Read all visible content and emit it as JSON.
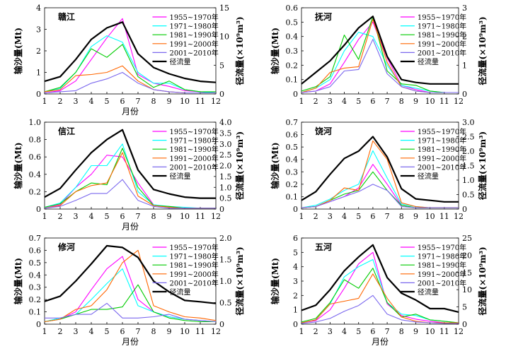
{
  "chart_data": [
    {
      "type": "line",
      "title": "赣江",
      "xlabel": "月份",
      "ylabel": "输沙量(Mt)",
      "y2label": "径流量(×10⁹m³)",
      "x": [
        1,
        2,
        3,
        4,
        5,
        6,
        7,
        8,
        9,
        10,
        11,
        12
      ],
      "ylim": [
        0,
        4
      ],
      "yticks": [
        "0",
        "1",
        "2",
        "3",
        "4"
      ],
      "y2lim": [
        0,
        15
      ],
      "y2ticks": [
        "0",
        "5",
        "10",
        "15"
      ],
      "legend_position": "top-right",
      "series": [
        {
          "name": "1955~1970年",
          "color": "#ff00ff",
          "axis": "left",
          "values": [
            0.05,
            0.15,
            0.6,
            1.6,
            2.6,
            3.5,
            0.9,
            0.5,
            0.35,
            0.15,
            0.1,
            0.05
          ]
        },
        {
          "name": "1971~1980年",
          "color": "#00ffff",
          "axis": "left",
          "values": [
            0.1,
            0.25,
            1.0,
            2.2,
            2.7,
            2.4,
            1.0,
            0.5,
            0.5,
            0.2,
            0.1,
            0.05
          ]
        },
        {
          "name": "1981~1990年",
          "color": "#00cc00",
          "axis": "left",
          "values": [
            0.1,
            0.3,
            1.0,
            2.1,
            1.7,
            2.3,
            0.8,
            0.3,
            0.6,
            0.2,
            0.1,
            0.1
          ]
        },
        {
          "name": "1991~2000年",
          "color": "#ff6600",
          "axis": "left",
          "values": [
            0.1,
            0.2,
            0.85,
            0.9,
            1.0,
            1.3,
            0.6,
            0.2,
            0.1,
            0.05,
            0.05,
            0.05
          ]
        },
        {
          "name": "2001~2010年",
          "color": "#7b68ee",
          "axis": "left",
          "values": [
            0.05,
            0.1,
            0.15,
            0.5,
            0.7,
            1.0,
            0.5,
            0.2,
            0.1,
            0.05,
            0.05,
            0.05
          ]
        },
        {
          "name": "径流量",
          "color": "#000000",
          "axis": "right",
          "values": [
            2.2,
            3.0,
            6.0,
            9.5,
            11.5,
            12.5,
            7.0,
            4.6,
            3.5,
            2.7,
            2.2,
            2.0
          ]
        }
      ]
    },
    {
      "type": "line",
      "title": "抚河",
      "xlabel": "",
      "ylabel": "输沙量(Mt)",
      "y2label": "径流量(×10⁹m³)",
      "x": [
        1,
        2,
        3,
        4,
        5,
        6,
        7,
        8,
        9,
        10,
        11,
        12
      ],
      "ylim": [
        0,
        0.6
      ],
      "yticks": [
        "0",
        "0.1",
        "0.2",
        "0.3",
        "0.4",
        "0.5",
        "0.6"
      ],
      "y2lim": [
        0,
        3
      ],
      "y2ticks": [
        "0",
        "1",
        "2",
        "3"
      ],
      "legend_position": "top-right",
      "series": [
        {
          "name": "1955~1970年",
          "color": "#ff00ff",
          "axis": "left",
          "values": [
            0.01,
            0.02,
            0.07,
            0.22,
            0.38,
            0.5,
            0.25,
            0.06,
            0.03,
            0.01,
            0.01,
            0.01
          ]
        },
        {
          "name": "1971~1980年",
          "color": "#00ffff",
          "axis": "left",
          "values": [
            0.01,
            0.04,
            0.1,
            0.3,
            0.43,
            0.4,
            0.2,
            0.06,
            0.04,
            0.02,
            0.01,
            0.01
          ]
        },
        {
          "name": "1981~1990年",
          "color": "#00cc00",
          "axis": "left",
          "values": [
            0.02,
            0.05,
            0.12,
            0.41,
            0.24,
            0.54,
            0.16,
            0.07,
            0.06,
            0.02,
            0.01,
            0.01
          ]
        },
        {
          "name": "1991~2000年",
          "color": "#ff6600",
          "axis": "left",
          "values": [
            0.01,
            0.04,
            0.15,
            0.18,
            0.19,
            0.52,
            0.22,
            0.05,
            0.02,
            0.01,
            0.01,
            0.01
          ]
        },
        {
          "name": "2001~2010年",
          "color": "#7b68ee",
          "axis": "left",
          "values": [
            0.01,
            0.02,
            0.05,
            0.16,
            0.17,
            0.38,
            0.14,
            0.05,
            0.02,
            0.01,
            0.01,
            0.01
          ]
        },
        {
          "name": "径流量",
          "color": "#000000",
          "axis": "right",
          "values": [
            0.35,
            0.75,
            1.15,
            1.7,
            2.3,
            2.7,
            1.3,
            0.5,
            0.4,
            0.35,
            0.35,
            0.35
          ]
        }
      ]
    },
    {
      "type": "line",
      "title": "信江",
      "xlabel": "月份",
      "ylabel": "输沙量(Mt)",
      "y2label": "径流量(×10⁹m³)",
      "x": [
        1,
        2,
        3,
        4,
        5,
        6,
        7,
        8,
        9,
        10,
        11,
        12
      ],
      "ylim": [
        0,
        1.0
      ],
      "yticks": [
        "0",
        "0.2",
        "0.4",
        "0.6",
        "0.8",
        "1.0"
      ],
      "y2lim": [
        0,
        4
      ],
      "y2ticks": [
        "0",
        "0.5",
        "1.0",
        "1.5",
        "2.0",
        "2.5",
        "3.0",
        "3.5",
        "4.0"
      ],
      "legend_position": "top-right",
      "series": [
        {
          "name": "1955~1970年",
          "color": "#ff00ff",
          "axis": "left",
          "values": [
            0.01,
            0.05,
            0.25,
            0.4,
            0.62,
            0.6,
            0.3,
            0.05,
            0.02,
            0.01,
            0.01,
            0.01
          ]
        },
        {
          "name": "1971~1980年",
          "color": "#00ffff",
          "axis": "left",
          "values": [
            0.02,
            0.07,
            0.25,
            0.5,
            0.5,
            0.75,
            0.2,
            0.05,
            0.03,
            0.02,
            0.01,
            0.01
          ]
        },
        {
          "name": "1981~1990年",
          "color": "#00cc00",
          "axis": "left",
          "values": [
            0.02,
            0.06,
            0.2,
            0.3,
            0.28,
            0.7,
            0.25,
            0.04,
            0.03,
            0.01,
            0.01,
            0.01
          ]
        },
        {
          "name": "1991~2000年",
          "color": "#ff6600",
          "axis": "left",
          "values": [
            0.01,
            0.04,
            0.2,
            0.27,
            0.3,
            0.65,
            0.15,
            0.04,
            0.02,
            0.01,
            0.01,
            0.01
          ]
        },
        {
          "name": "2001~2010年",
          "color": "#7b68ee",
          "axis": "left",
          "values": [
            0.01,
            0.03,
            0.1,
            0.18,
            0.18,
            0.34,
            0.1,
            0.03,
            0.01,
            0.01,
            0.01,
            0.01
          ]
        },
        {
          "name": "径流量",
          "color": "#000000",
          "axis": "right",
          "values": [
            0.55,
            0.95,
            1.8,
            2.6,
            3.2,
            3.65,
            1.8,
            0.9,
            0.7,
            0.55,
            0.5,
            0.5
          ]
        }
      ]
    },
    {
      "type": "line",
      "title": "饶河",
      "xlabel": "",
      "ylabel": "输沙量(Mt)",
      "y2label": "径流量(×10⁹m³)",
      "x": [
        1,
        2,
        3,
        4,
        5,
        6,
        7,
        8,
        9,
        10,
        11,
        12
      ],
      "ylim": [
        0,
        0.7
      ],
      "yticks": [
        "0",
        "0.1",
        "0.2",
        "0.3",
        "0.4",
        "0.5",
        "0.6",
        "0.7"
      ],
      "y2lim": [
        0,
        3
      ],
      "y2ticks": [
        "0",
        "0.5",
        "1.0",
        "1.5",
        "2.0",
        "2.5",
        "3.0"
      ],
      "legend_position": "top-right",
      "series": [
        {
          "name": "1955~1970年",
          "color": "#ff00ff",
          "axis": "left",
          "values": [
            0.01,
            0.02,
            0.06,
            0.1,
            0.17,
            0.36,
            0.2,
            0.03,
            0.01,
            0.01,
            0.01,
            0.01
          ]
        },
        {
          "name": "1971~1980年",
          "color": "#00ffff",
          "axis": "left",
          "values": [
            0.01,
            0.03,
            0.08,
            0.15,
            0.2,
            0.47,
            0.25,
            0.04,
            0.02,
            0.01,
            0.01,
            0.01
          ]
        },
        {
          "name": "1981~1990年",
          "color": "#00cc00",
          "axis": "left",
          "values": [
            0.01,
            0.02,
            0.07,
            0.12,
            0.15,
            0.3,
            0.15,
            0.03,
            0.01,
            0.01,
            0.01,
            0.01
          ]
        },
        {
          "name": "1991~2000年",
          "color": "#ff6600",
          "axis": "left",
          "values": [
            0.01,
            0.02,
            0.07,
            0.17,
            0.15,
            0.55,
            0.4,
            0.05,
            0.02,
            0.01,
            0.01,
            0.01
          ]
        },
        {
          "name": "2001~2010年",
          "color": "#7b68ee",
          "axis": "left",
          "values": [
            0.01,
            0.02,
            0.06,
            0.1,
            0.14,
            0.2,
            0.15,
            0.02,
            0.01,
            0.01,
            0.01,
            0.01
          ]
        },
        {
          "name": "径流量",
          "color": "#000000",
          "axis": "right",
          "values": [
            0.3,
            0.6,
            1.2,
            1.75,
            2.0,
            2.5,
            1.8,
            0.7,
            0.35,
            0.3,
            0.25,
            0.25
          ]
        }
      ]
    },
    {
      "type": "line",
      "title": "修河",
      "xlabel": "月份",
      "ylabel": "输沙量(Mt)",
      "y2label": "径流量(×10⁹m³)",
      "x": [
        1,
        2,
        3,
        4,
        5,
        6,
        7,
        8,
        9,
        10,
        11,
        12
      ],
      "ylim": [
        0,
        0.7
      ],
      "yticks": [
        "0",
        "0.1",
        "0.2",
        "0.3",
        "0.4",
        "0.5",
        "0.6",
        "0.7"
      ],
      "y2lim": [
        0,
        2.0
      ],
      "y2ticks": [
        "0",
        "0.5",
        "1.0",
        "1.5",
        "2.0"
      ],
      "legend_position": "top-right",
      "series": [
        {
          "name": "1955~1970年",
          "color": "#ff00ff",
          "axis": "left",
          "values": [
            0.02,
            0.04,
            0.1,
            0.28,
            0.45,
            0.55,
            0.2,
            0.1,
            0.06,
            0.04,
            0.03,
            0.02
          ]
        },
        {
          "name": "1971~1980年",
          "color": "#00ffff",
          "axis": "left",
          "values": [
            0.02,
            0.05,
            0.08,
            0.2,
            0.33,
            0.45,
            0.15,
            0.1,
            0.06,
            0.04,
            0.03,
            0.02
          ]
        },
        {
          "name": "1981~1990年",
          "color": "#00cc00",
          "axis": "left",
          "values": [
            0.02,
            0.04,
            0.08,
            0.12,
            0.12,
            0.14,
            0.32,
            0.1,
            0.05,
            0.03,
            0.02,
            0.02
          ]
        },
        {
          "name": "1991~2000年",
          "color": "#ff6600",
          "axis": "left",
          "values": [
            0.02,
            0.04,
            0.12,
            0.15,
            0.28,
            0.5,
            0.6,
            0.15,
            0.1,
            0.06,
            0.05,
            0.03
          ]
        },
        {
          "name": "2001~2010年",
          "color": "#7b68ee",
          "axis": "left",
          "values": [
            0.05,
            0.05,
            0.08,
            0.08,
            0.17,
            0.05,
            0.05,
            0.06,
            0.08,
            0.04,
            0.03,
            0.02
          ]
        },
        {
          "name": "径流量",
          "color": "#000000",
          "axis": "right",
          "values": [
            0.53,
            0.65,
            1.0,
            1.4,
            1.82,
            1.78,
            1.55,
            1.0,
            0.75,
            0.55,
            0.52,
            0.48
          ]
        }
      ]
    },
    {
      "type": "line",
      "title": "五河",
      "xlabel": "月份",
      "ylabel": "输沙量(Mt)",
      "y2label": "径流量(×10⁹m³)",
      "x": [
        1,
        2,
        3,
        4,
        5,
        6,
        7,
        8,
        9,
        10,
        11,
        12
      ],
      "ylim": [
        0,
        6
      ],
      "yticks": [
        "0",
        "1",
        "2",
        "3",
        "4",
        "5",
        "6"
      ],
      "y2lim": [
        0,
        25
      ],
      "y2ticks": [
        "0",
        "5",
        "10",
        "15",
        "20",
        "25"
      ],
      "legend_position": "top-right",
      "series": [
        {
          "name": "1955~1970年",
          "color": "#ff00ff",
          "axis": "left",
          "values": [
            0.1,
            0.25,
            1.0,
            2.5,
            4.2,
            5.0,
            1.4,
            0.6,
            0.35,
            0.2,
            0.1,
            0.1
          ]
        },
        {
          "name": "1971~1980年",
          "color": "#00ffff",
          "axis": "left",
          "values": [
            0.1,
            0.3,
            1.4,
            3.3,
            4.0,
            4.5,
            1.5,
            0.7,
            0.6,
            0.3,
            0.2,
            0.1
          ]
        },
        {
          "name": "1981~1990年",
          "color": "#00cc00",
          "axis": "left",
          "values": [
            0.15,
            0.4,
            1.5,
            3.1,
            2.5,
            3.9,
            1.5,
            0.5,
            0.7,
            0.3,
            0.2,
            0.1
          ]
        },
        {
          "name": "1991~2000年",
          "color": "#ff6600",
          "axis": "left",
          "values": [
            0.1,
            0.3,
            1.4,
            1.6,
            1.8,
            3.5,
            1.8,
            0.5,
            0.2,
            0.1,
            0.1,
            0.1
          ]
        },
        {
          "name": "2001~2010年",
          "color": "#7b68ee",
          "axis": "left",
          "values": [
            0.05,
            0.15,
            0.4,
            0.9,
            1.3,
            2.0,
            0.7,
            0.3,
            0.15,
            0.1,
            0.05,
            0.05
          ]
        },
        {
          "name": "径流量",
          "color": "#000000",
          "axis": "right",
          "values": [
            4.0,
            5.5,
            10.0,
            15.5,
            19.5,
            23.0,
            13.5,
            9.0,
            7.0,
            4.5,
            4.5,
            3.5
          ]
        }
      ]
    }
  ]
}
